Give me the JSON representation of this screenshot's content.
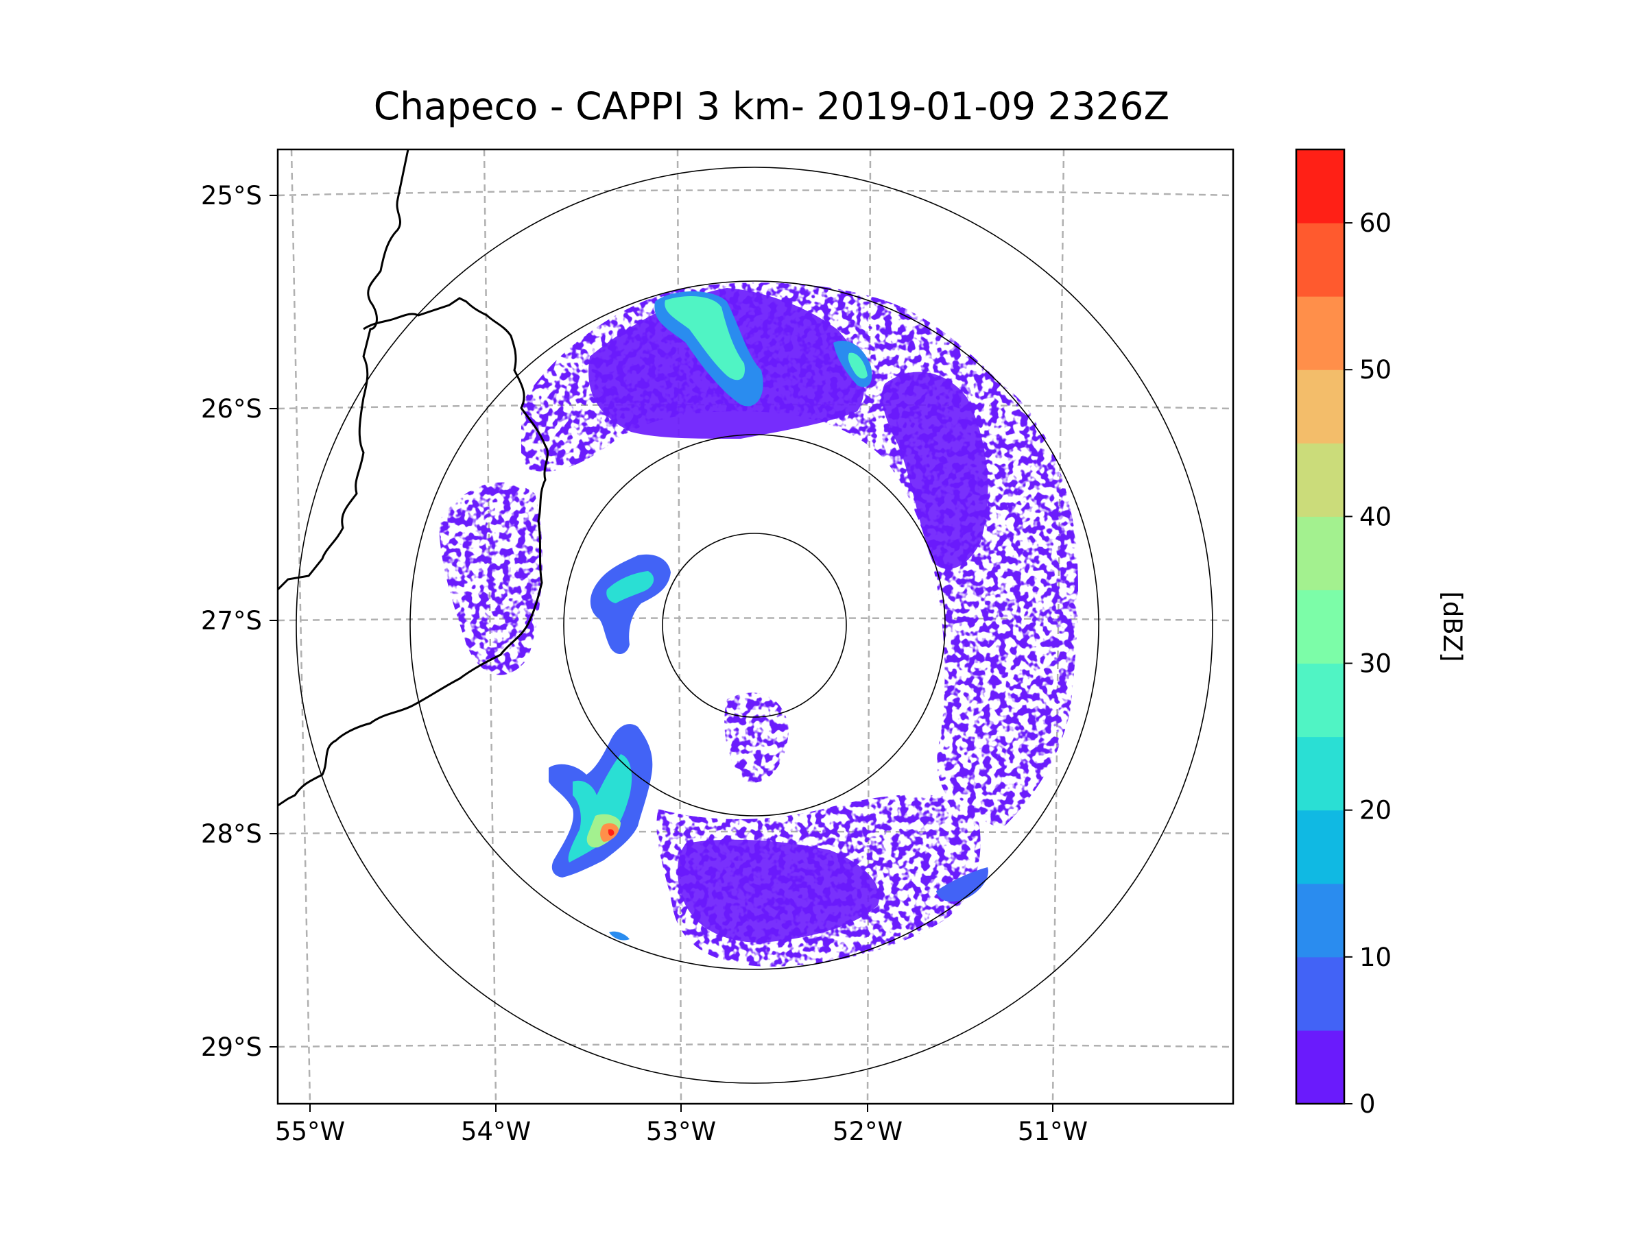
{
  "title": "Chapeco - CAPPI 3 km- 2019-01-09 2326Z",
  "map": {
    "lat_labels": [
      "25°S",
      "26°S",
      "27°S",
      "28°S",
      "29°S"
    ],
    "lon_labels": [
      "55°W",
      "54°W",
      "53°W",
      "52°W",
      "51°W"
    ],
    "range_rings": 4,
    "grid_color": "#b0b0b0",
    "border_color": "#000000"
  },
  "colorbar": {
    "label": "[dBZ]",
    "ticks": [
      "0",
      "10",
      "20",
      "30",
      "40",
      "50",
      "60"
    ],
    "min": 0,
    "max": 65,
    "step": 5,
    "colors": [
      "#6a1bfc",
      "#4263f6",
      "#2a8cef",
      "#10b9e3",
      "#2adfd4",
      "#50f4c4",
      "#7cfda8",
      "#a3f18f",
      "#cbdc7a",
      "#f3bd6a",
      "#ff8f4a",
      "#ff5a2e",
      "#ff2016"
    ]
  }
}
